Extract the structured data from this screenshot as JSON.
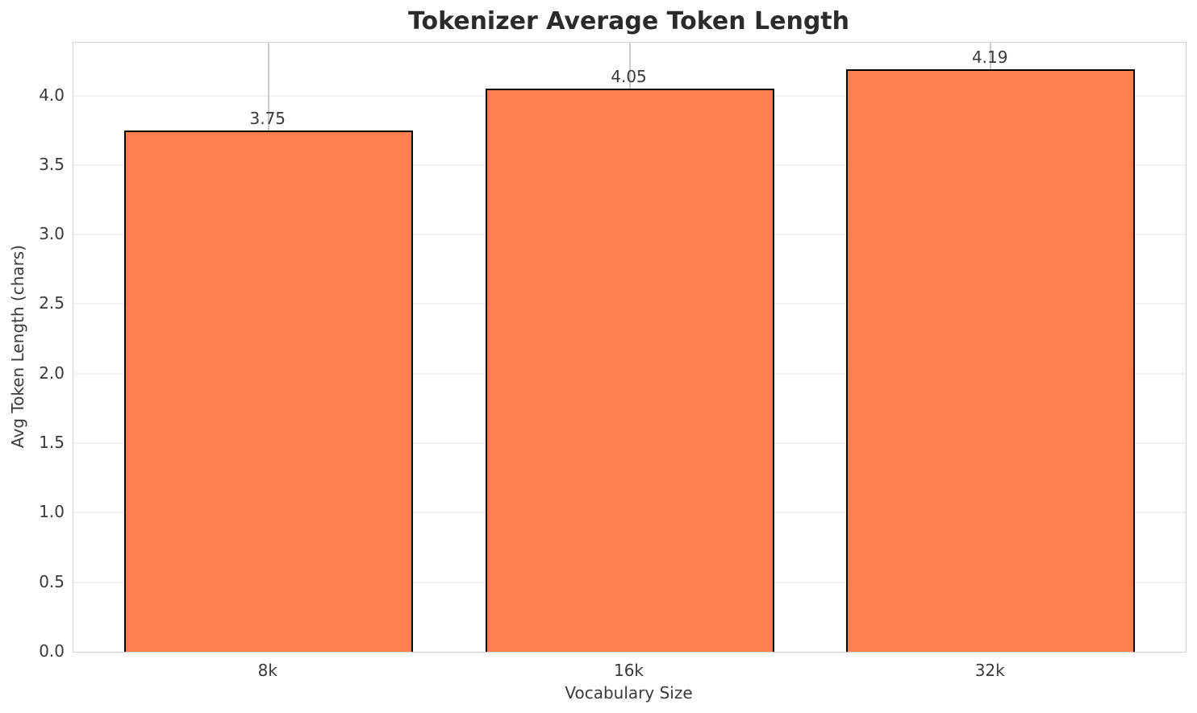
{
  "chart_data": {
    "type": "bar",
    "title": "Tokenizer Average Token Length",
    "xlabel": "Vocabulary Size",
    "ylabel": "Avg Token Length (chars)",
    "categories": [
      "8k",
      "16k",
      "32k"
    ],
    "values": [
      3.75,
      4.05,
      4.19
    ],
    "value_labels": [
      "3.75",
      "4.05",
      "4.19"
    ],
    "yticks": [
      0.0,
      0.5,
      1.0,
      1.5,
      2.0,
      2.5,
      3.0,
      3.5,
      4.0
    ],
    "ytick_labels": [
      "0.0",
      "0.5",
      "1.0",
      "1.5",
      "2.0",
      "2.5",
      "3.0",
      "3.5",
      "4.0"
    ],
    "ylim": [
      0,
      4.38
    ],
    "grid": true,
    "legend_position": "none",
    "colors": {
      "bar_fill": "#ff7f50",
      "bar_edge": "#000000",
      "h_grid": "#f2f2f2",
      "v_grid": "#cccccc",
      "spine": "#d4d4d4",
      "title_text": "#2b2b2b",
      "tick_text": "#3a3a3a",
      "background": "#ffffff"
    }
  }
}
